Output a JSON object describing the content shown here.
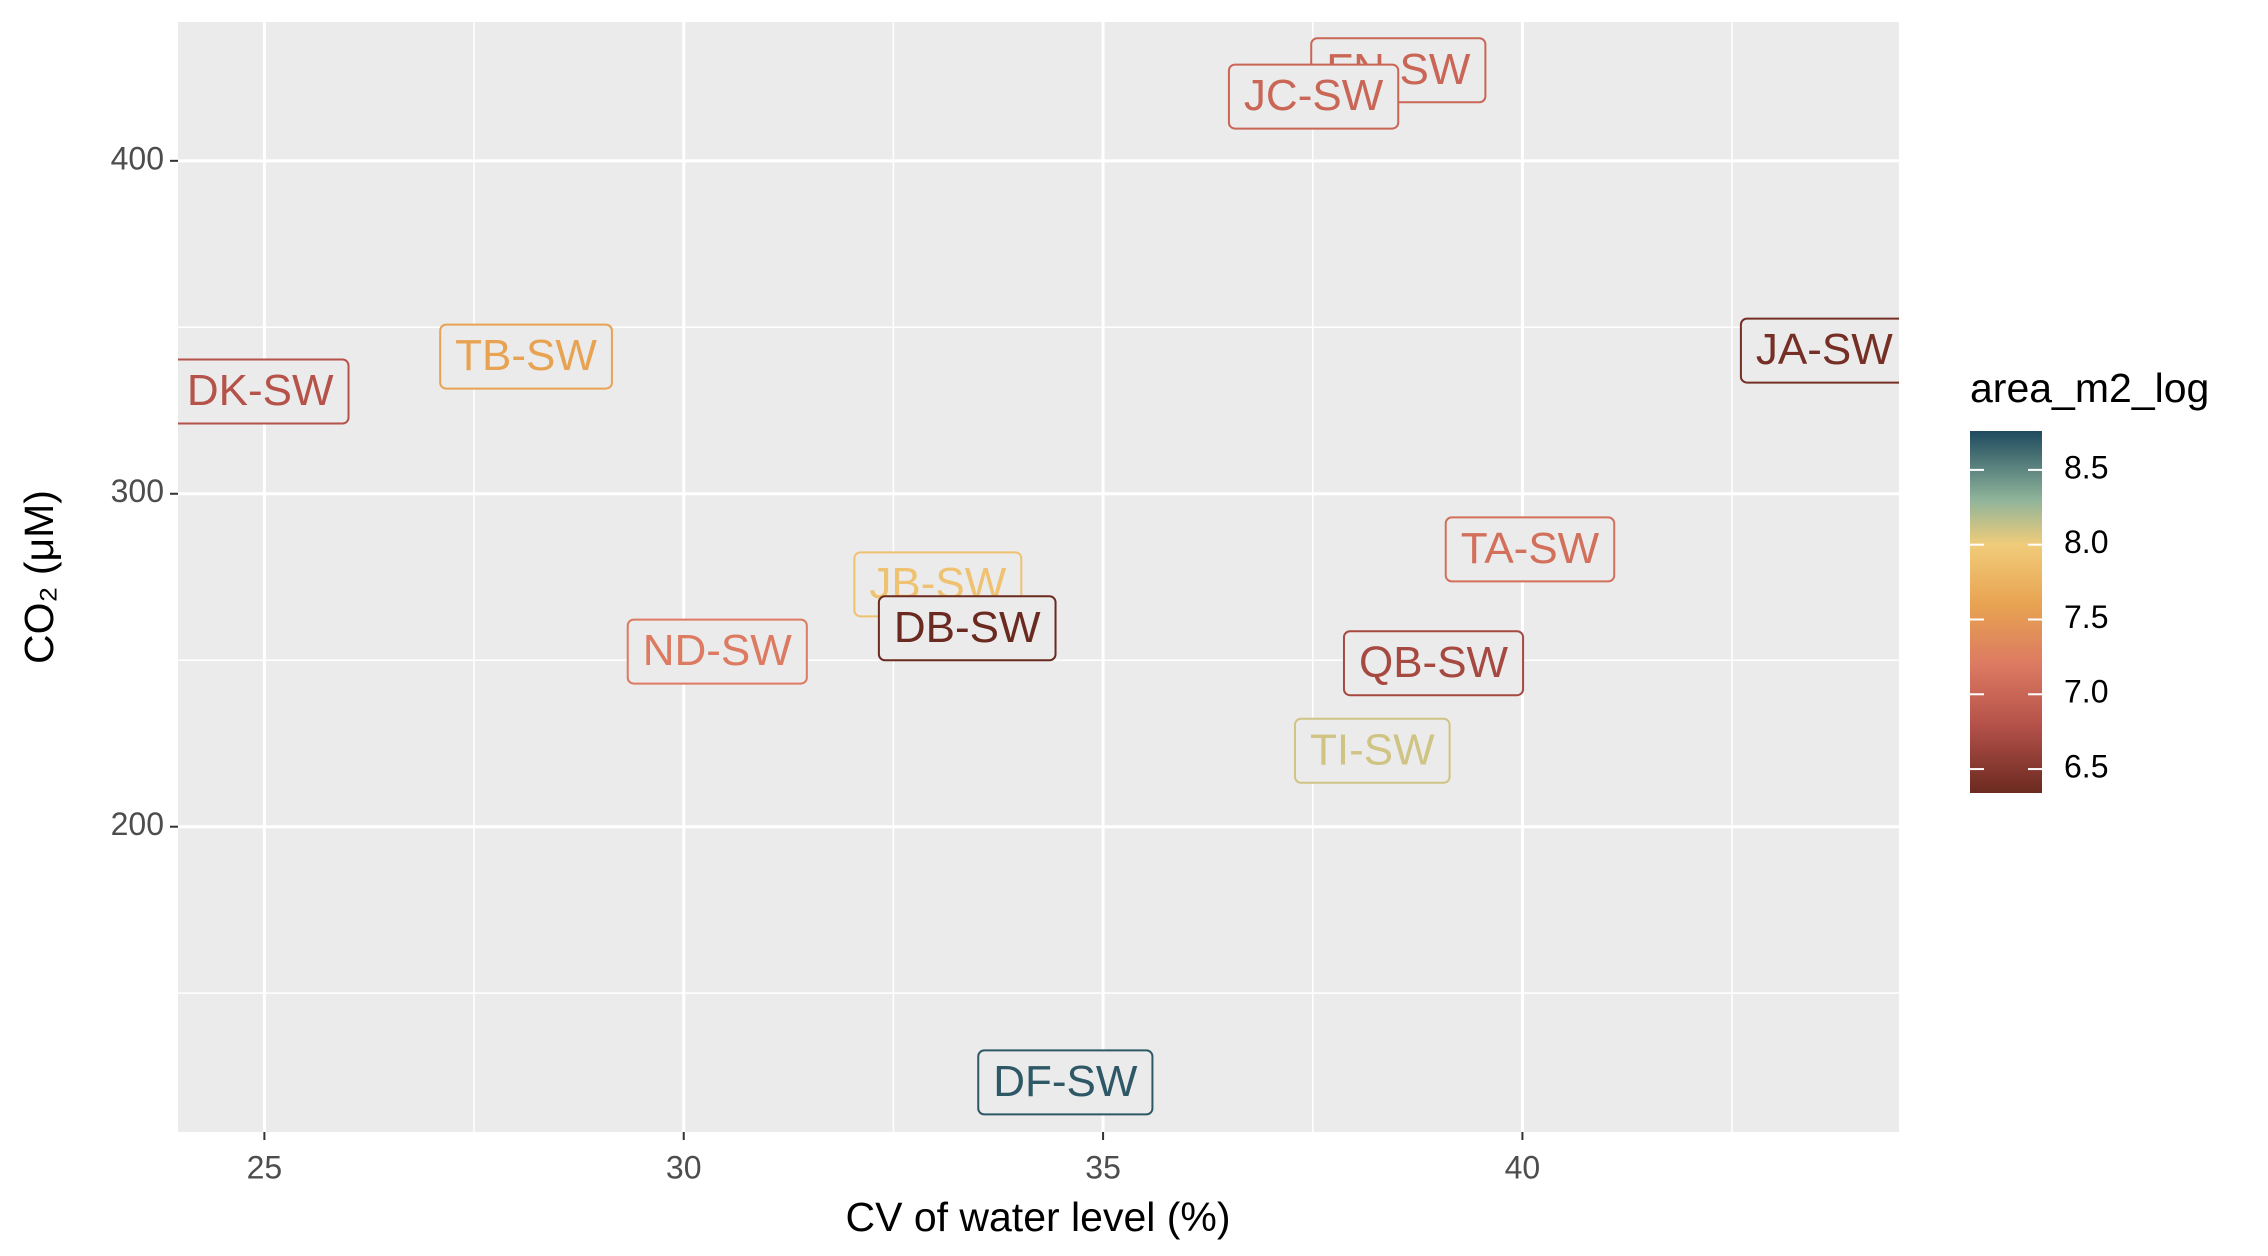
{
  "chart_data": {
    "type": "label-scatter",
    "x_label": "CV of water level (%)",
    "y_label": "CO₂ (μM)",
    "legend_title": "area_m2_log",
    "legend_position": "right",
    "grid": true,
    "xlim": [
      23.97,
      44.49
    ],
    "ylim": [
      108.3,
      441.7
    ],
    "xticks": [
      25,
      30,
      35,
      40
    ],
    "yticks": [
      200,
      300,
      400
    ],
    "colorbar_lim": [
      6.34,
      8.76
    ],
    "colorbar_ticks": [
      {
        "value": 6.5,
        "label": "6.5"
      },
      {
        "value": 7,
        "label": "7.0"
      },
      {
        "value": 7.5,
        "label": "7.5"
      },
      {
        "value": 8,
        "label": "8.0"
      },
      {
        "value": 8.5,
        "label": "8.5"
      }
    ],
    "colorscale": [
      [
        6.34,
        "#6b2a20"
      ],
      [
        6.8,
        "#b5524a"
      ],
      [
        7.2,
        "#dc7a62"
      ],
      [
        7.6,
        "#e8a352"
      ],
      [
        8.0,
        "#f0cc7a"
      ],
      [
        8.3,
        "#8fb49a"
      ],
      [
        8.76,
        "#1f4a5e"
      ]
    ],
    "labels": [
      "FN-SW",
      "JC-SW",
      "TB-SW",
      "DK-SW",
      "JA-SW",
      "TA-SW",
      "JB-SW",
      "DB-SW",
      "ND-SW",
      "QB-SW",
      "TI-SW",
      "DF-SW"
    ],
    "x": [
      38.52,
      37.51,
      28.12,
      24.95,
      43.6,
      40.09,
      33.03,
      33.38,
      30.4,
      38.94,
      38.21,
      34.55
    ],
    "values": [
      427.2,
      419.3,
      341.2,
      330.7,
      343.0,
      283.3,
      272.8,
      259.6,
      252.6,
      249.1,
      222.8,
      123.2
    ],
    "color_values": [
      7.0,
      7.0,
      7.6,
      6.8,
      6.4,
      7.1,
      7.9,
      6.3,
      7.2,
      6.7,
      8.1,
      8.7
    ]
  }
}
